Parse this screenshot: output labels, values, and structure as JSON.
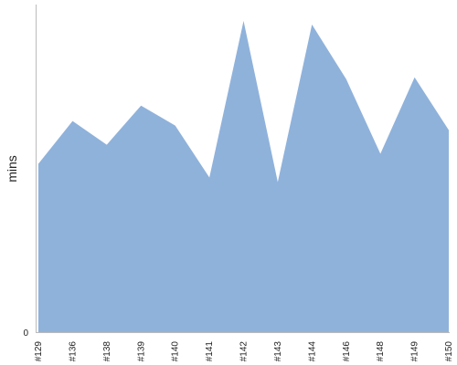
{
  "chart_data": {
    "type": "area",
    "title": "",
    "xlabel": "",
    "ylabel": "mins",
    "categories": [
      "#129",
      "#136",
      "#138",
      "#139",
      "#140",
      "#141",
      "#142",
      "#143",
      "#144",
      "#146",
      "#148",
      "#149",
      "#150"
    ],
    "series": [
      {
        "values": [
          185,
          232,
          206,
          249,
          227,
          170,
          342,
          165,
          338,
          278,
          196,
          280,
          222
        ]
      }
    ],
    "ylim": [
      0,
      360
    ],
    "yticks": [
      0
    ],
    "grid": false,
    "legend": "none",
    "colors": {
      "area": "#8fb2db",
      "axis": "#bbbbbb"
    }
  }
}
